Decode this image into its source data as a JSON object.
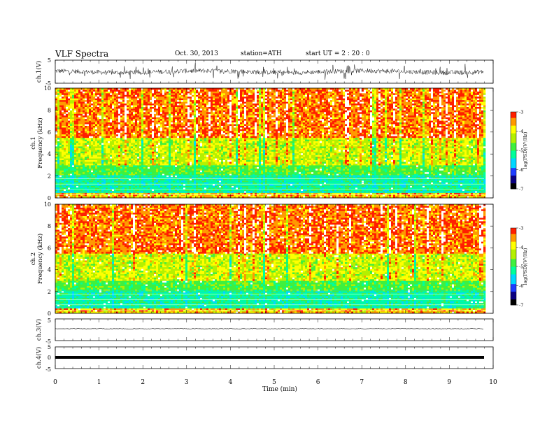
{
  "header": {
    "title": "VLF  Spectra",
    "date": "Oct. 30, 2013",
    "station": "station=ATH",
    "start": "start  UT  =   2  : 20 : 0"
  },
  "colors": {
    "colormap": [
      "#000000",
      "#0b0080",
      "#1e3cff",
      "#00d7ff",
      "#00ff9a",
      "#3ef03e",
      "#b4f000",
      "#ffff00",
      "#ff9900",
      "#ff1e00",
      "#ffffff"
    ],
    "trace": "#000000"
  },
  "chart_data": [
    {
      "type": "line",
      "ylabel": "ch.1(V)",
      "ylim": [
        -5,
        5
      ],
      "yticks": [
        "5",
        "-5"
      ],
      "xlim": [
        0,
        10
      ],
      "description_values": {
        "baseline_mean": 0,
        "noise_amplitude": 1.5
      }
    },
    {
      "type": "heatmap",
      "ylabel": "ch.1\nFrequency  (kHz)",
      "ylim": [
        0,
        10
      ],
      "yticks": [
        "0",
        "2",
        "4",
        "6",
        "8",
        "10"
      ],
      "xlim": [
        0,
        10
      ],
      "colorbar": {
        "label": "log(PSD)(V²/Hz)",
        "ticks": [
          "-3",
          "-4",
          "-5",
          "-6",
          "-7"
        ],
        "range": [
          -7,
          -3
        ]
      }
    },
    {
      "type": "heatmap",
      "ylabel": "ch.2\nFrequency  (kHz)",
      "ylim": [
        0,
        10
      ],
      "yticks": [
        "0",
        "2",
        "4",
        "6",
        "8",
        "10"
      ],
      "xlim": [
        0,
        10
      ],
      "colorbar": {
        "label": "log(PSD)(V²/Hz)",
        "ticks": [
          "-3",
          "-4",
          "-5",
          "-6",
          "-7"
        ],
        "range": [
          -7,
          -3
        ]
      }
    },
    {
      "type": "line",
      "ylabel": "ch.3(V)",
      "ylim": [
        -5,
        5
      ],
      "yticks": [
        "5",
        "-5"
      ],
      "xlim": [
        0,
        10
      ]
    },
    {
      "type": "line",
      "ylabel": "ch.4(V)",
      "ylim": [
        -5,
        5
      ],
      "yticks": [
        "5",
        "0",
        "-5"
      ],
      "xlim": [
        0,
        10
      ],
      "xlabel": "Time  (min)",
      "xticks": [
        "0",
        "1",
        "2",
        "3",
        "4",
        "5",
        "6",
        "7",
        "8",
        "9",
        "10"
      ]
    }
  ]
}
